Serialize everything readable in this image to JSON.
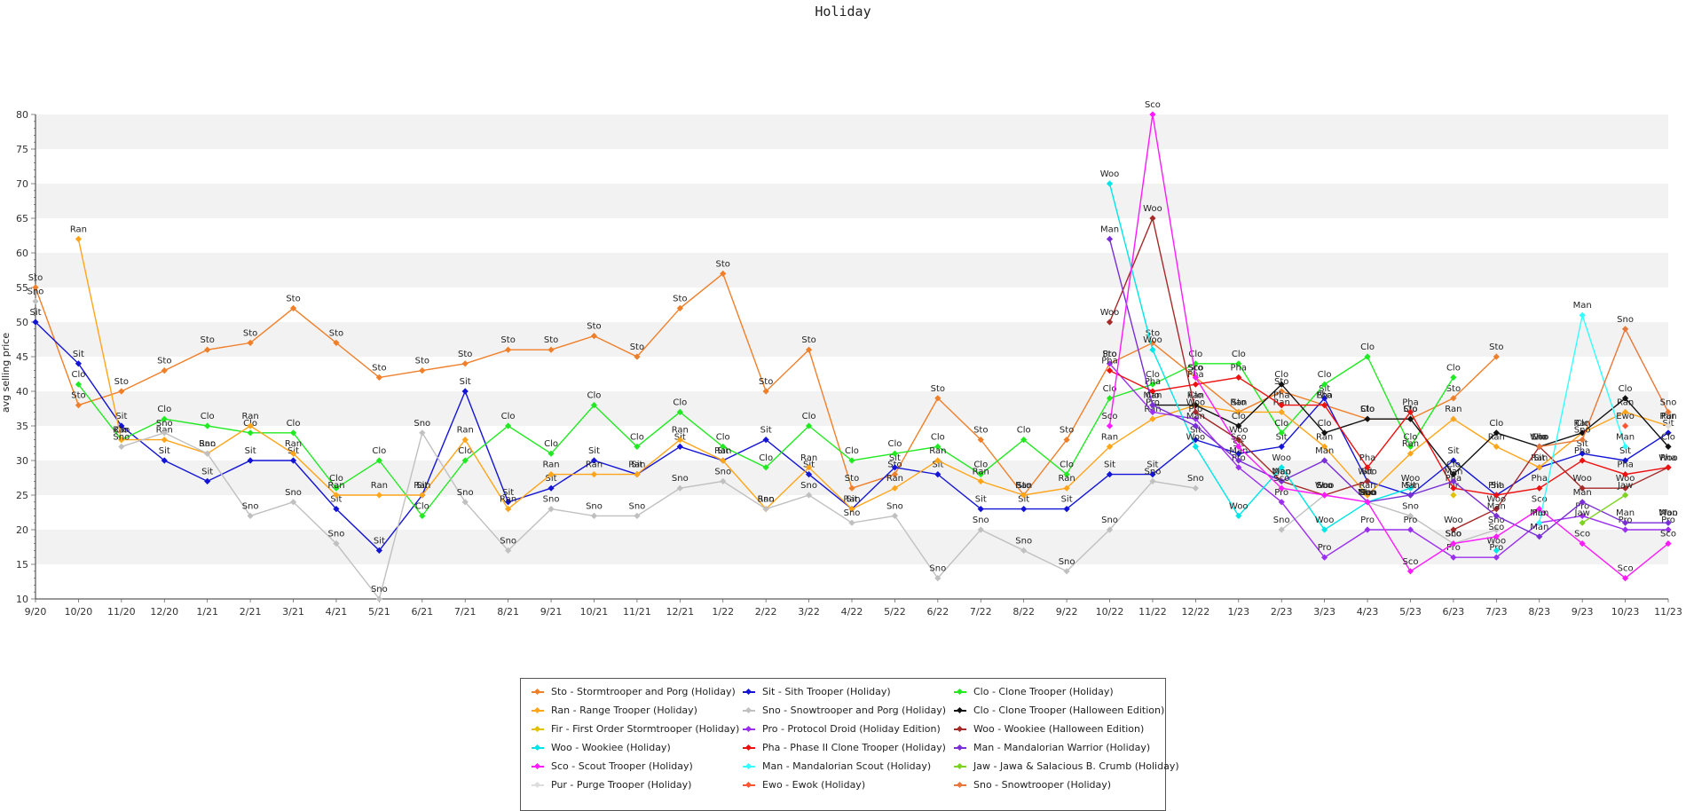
{
  "chart_data": {
    "type": "line",
    "title": "Holiday",
    "ylabel": "avg selling price",
    "xlabel": "",
    "ylim": [
      10,
      80
    ],
    "yticks": [
      10,
      15,
      20,
      25,
      30,
      35,
      40,
      45,
      50,
      55,
      60,
      65,
      70,
      75,
      80
    ],
    "categories": [
      "9/20",
      "10/20",
      "11/20",
      "12/20",
      "1/21",
      "2/21",
      "3/21",
      "4/21",
      "5/21",
      "6/21",
      "7/21",
      "8/21",
      "9/21",
      "10/21",
      "11/21",
      "12/21",
      "1/22",
      "2/22",
      "3/22",
      "4/22",
      "5/22",
      "6/22",
      "7/22",
      "8/22",
      "9/22",
      "10/22",
      "11/22",
      "12/22",
      "1/23",
      "2/23",
      "3/23",
      "4/23",
      "5/23",
      "6/23",
      "7/23",
      "8/23",
      "9/23",
      "10/23",
      "11/23"
    ],
    "grid": "alternating horizontal bands",
    "legend_position": "bottom",
    "series": [
      {
        "name": "Sto - Stormtrooper and Porg (Holiday)",
        "label": "Sto",
        "color": "#f07f2a",
        "values": [
          55,
          38,
          40,
          43,
          46,
          47,
          52,
          47,
          42,
          43,
          44,
          46,
          46,
          48,
          45,
          52,
          57,
          40,
          46,
          26,
          28,
          39,
          33,
          25,
          33,
          44,
          47,
          42,
          37,
          40,
          38,
          36,
          36,
          39,
          45,
          null,
          null,
          null,
          null
        ]
      },
      {
        "name": "Sit - Sith Trooper (Holiday)",
        "label": "Sit",
        "color": "#1414d6",
        "values": [
          50,
          44,
          35,
          30,
          27,
          30,
          30,
          23,
          17,
          25,
          40,
          24,
          26,
          30,
          28,
          32,
          30,
          33,
          28,
          23,
          29,
          28,
          23,
          23,
          23,
          28,
          28,
          33,
          31,
          32,
          39,
          27,
          25,
          30,
          25,
          29,
          31,
          30,
          34
        ]
      },
      {
        "name": "Clo - Clone Trooper (Holiday)",
        "label": "Clo",
        "color": "#22ea22",
        "values": [
          null,
          41,
          33,
          36,
          35,
          34,
          34,
          26,
          30,
          22,
          30,
          35,
          31,
          38,
          32,
          37,
          32,
          29,
          35,
          30,
          31,
          32,
          28,
          33,
          28,
          39,
          41,
          44,
          44,
          34,
          41,
          45,
          32,
          42,
          null,
          null,
          null,
          null,
          null
        ]
      },
      {
        "name": "Ran - Range Trooper (Holiday)",
        "label": "Ran",
        "color": "#ffa51a",
        "values": [
          null,
          62,
          33,
          33,
          31,
          35,
          31,
          25,
          25,
          25,
          33,
          23,
          28,
          28,
          28,
          33,
          30,
          23,
          29,
          23,
          26,
          30,
          27,
          25,
          26,
          32,
          36,
          38,
          37,
          37,
          32,
          25,
          31,
          36,
          32,
          29,
          34,
          37,
          35
        ]
      },
      {
        "name": "Sno - Snowtrooper and Porg (Holiday)",
        "label": "Sno",
        "color": "#c0c0c0",
        "values": [
          53,
          null,
          32,
          34,
          31,
          22,
          24,
          18,
          10,
          34,
          24,
          17,
          23,
          22,
          22,
          26,
          27,
          23,
          25,
          21,
          22,
          13,
          20,
          17,
          14,
          20,
          27,
          26,
          null,
          20,
          25,
          24,
          22,
          18,
          20,
          null,
          null,
          null,
          null
        ]
      },
      {
        "name": "Clo - Clone Trooper (Halloween Edition)",
        "label": "Clo",
        "color": "#111111",
        "values": [
          null,
          null,
          null,
          null,
          null,
          null,
          null,
          null,
          null,
          null,
          null,
          null,
          null,
          null,
          null,
          null,
          null,
          null,
          null,
          null,
          null,
          null,
          null,
          null,
          null,
          null,
          38,
          38,
          35,
          41,
          34,
          36,
          36,
          28,
          34,
          32,
          34,
          39,
          32
        ]
      },
      {
        "name": "Fir - First Order Stormtrooper (Holiday)",
        "label": "Fir",
        "color": "#e0c000",
        "values": [
          null,
          null,
          null,
          null,
          null,
          null,
          null,
          null,
          null,
          null,
          null,
          null,
          null,
          null,
          null,
          null,
          null,
          null,
          null,
          null,
          null,
          null,
          null,
          null,
          null,
          null,
          null,
          null,
          null,
          null,
          null,
          null,
          null,
          25,
          null,
          null,
          null,
          null,
          null
        ]
      },
      {
        "name": "Pro - Protocol Droid (Holiday Edition)",
        "label": "Pro",
        "color": "#9b2ff0",
        "values": [
          null,
          null,
          null,
          null,
          null,
          null,
          null,
          null,
          null,
          null,
          null,
          null,
          null,
          null,
          null,
          null,
          null,
          null,
          null,
          null,
          null,
          null,
          null,
          null,
          null,
          44,
          37,
          36,
          29,
          24,
          16,
          20,
          20,
          16,
          16,
          21,
          22,
          20,
          20
        ]
      },
      {
        "name": "Woo - Wookiee (Halloween Edition)",
        "label": "Woo",
        "color": "#a52a2a",
        "values": [
          null,
          null,
          null,
          null,
          null,
          null,
          null,
          null,
          null,
          null,
          null,
          null,
          null,
          null,
          null,
          null,
          null,
          null,
          null,
          null,
          null,
          null,
          null,
          null,
          null,
          50,
          65,
          37,
          33,
          27,
          25,
          27,
          null,
          20,
          23,
          32,
          26,
          26,
          29
        ]
      },
      {
        "name": "Woo - Wookiee (Holiday)",
        "label": "Woo",
        "color": "#00e6e6",
        "values": [
          null,
          null,
          null,
          null,
          null,
          null,
          null,
          null,
          null,
          null,
          null,
          null,
          null,
          null,
          null,
          null,
          null,
          null,
          null,
          null,
          null,
          null,
          null,
          null,
          null,
          70,
          46,
          32,
          22,
          29,
          20,
          24,
          26,
          null,
          17,
          null,
          null,
          null,
          21
        ]
      },
      {
        "name": "Pha - Phase II Clone Trooper (Holiday)",
        "label": "Pha",
        "color": "#ee1111",
        "values": [
          null,
          null,
          null,
          null,
          null,
          null,
          null,
          null,
          null,
          null,
          null,
          null,
          null,
          null,
          null,
          null,
          null,
          null,
          null,
          null,
          null,
          null,
          null,
          null,
          null,
          43,
          40,
          41,
          42,
          38,
          38,
          29,
          37,
          26,
          25,
          26,
          30,
          28,
          29
        ]
      },
      {
        "name": "Man - Mandalorian Warrior (Holiday)",
        "label": "Man",
        "color": "#7a2ed6",
        "values": [
          null,
          null,
          null,
          null,
          null,
          null,
          null,
          null,
          null,
          null,
          null,
          null,
          null,
          null,
          null,
          null,
          null,
          null,
          null,
          null,
          null,
          null,
          null,
          null,
          null,
          62,
          38,
          35,
          30,
          27,
          30,
          24,
          25,
          27,
          22,
          19,
          24,
          21,
          21
        ]
      },
      {
        "name": "Sco - Scout Trooper (Holiday)",
        "label": "Sco",
        "color": "#ff1aff",
        "values": [
          null,
          null,
          null,
          null,
          null,
          null,
          null,
          null,
          null,
          null,
          null,
          null,
          null,
          null,
          null,
          null,
          null,
          null,
          null,
          null,
          null,
          null,
          null,
          null,
          null,
          35,
          80,
          42,
          32,
          26,
          25,
          24,
          14,
          18,
          19,
          23,
          18,
          13,
          18
        ]
      },
      {
        "name": "Man - Mandalorian Scout (Holiday)",
        "label": "Man",
        "color": "#33ffff",
        "values": [
          null,
          null,
          null,
          null,
          null,
          null,
          null,
          null,
          null,
          null,
          null,
          null,
          null,
          null,
          null,
          null,
          null,
          null,
          null,
          null,
          null,
          null,
          null,
          null,
          null,
          null,
          null,
          null,
          null,
          null,
          null,
          null,
          null,
          null,
          null,
          21,
          51,
          32,
          null
        ]
      },
      {
        "name": "Jaw - Jawa & Salacious B. Crumb (Holiday)",
        "label": "Jaw",
        "color": "#7ed321",
        "values": [
          null,
          null,
          null,
          null,
          null,
          null,
          null,
          null,
          null,
          null,
          null,
          null,
          null,
          null,
          null,
          null,
          null,
          null,
          null,
          null,
          null,
          null,
          null,
          null,
          null,
          null,
          null,
          null,
          null,
          null,
          null,
          null,
          null,
          null,
          null,
          null,
          21,
          25,
          null
        ]
      },
      {
        "name": "Pur - Purge Trooper (Holiday)",
        "label": "Pur",
        "color": "#dddddd",
        "values": [
          null,
          null,
          null,
          null,
          null,
          null,
          null,
          null,
          null,
          null,
          null,
          null,
          null,
          null,
          null,
          null,
          null,
          null,
          null,
          null,
          null,
          null,
          null,
          null,
          null,
          null,
          null,
          null,
          null,
          null,
          null,
          null,
          null,
          null,
          null,
          null,
          null,
          null,
          35
        ]
      },
      {
        "name": "Ewo - Ewok (Holiday)",
        "label": "Ewo",
        "color": "#ff5533",
        "values": [
          null,
          null,
          null,
          null,
          null,
          null,
          null,
          null,
          null,
          null,
          null,
          null,
          null,
          null,
          null,
          null,
          null,
          null,
          null,
          null,
          null,
          null,
          null,
          null,
          null,
          null,
          null,
          null,
          null,
          null,
          null,
          null,
          null,
          null,
          null,
          null,
          null,
          35,
          null
        ]
      },
      {
        "name": "Sno - Snowtrooper (Holiday)",
        "label": "Sno",
        "color": "#e8773a",
        "values": [
          null,
          null,
          null,
          null,
          null,
          null,
          null,
          null,
          null,
          null,
          null,
          null,
          null,
          null,
          null,
          null,
          null,
          null,
          null,
          null,
          null,
          null,
          null,
          null,
          null,
          null,
          null,
          null,
          null,
          null,
          null,
          null,
          null,
          null,
          null,
          32,
          33,
          49,
          37
        ]
      }
    ]
  }
}
